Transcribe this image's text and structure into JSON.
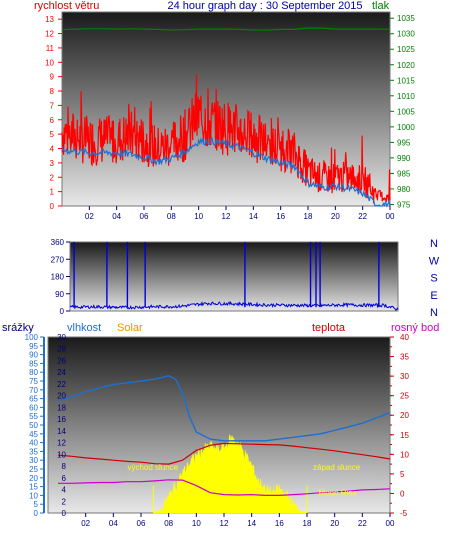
{
  "header": {
    "title": "24 hour graph day : 30 September 2015",
    "left_label": "rychlost větru",
    "right_label": "tlak"
  },
  "colors": {
    "wind": "#ff0000",
    "pressure": "#008000",
    "gust": "#1e6fd0",
    "direction": "#0000dd",
    "humidity": "#1e6fd0",
    "temperature": "#cc0000",
    "dewpoint": "#cc00cc",
    "solar": "#ffff00",
    "rain_label": "#000080",
    "solar_label": "#ff8c00",
    "axis_wind": "#ff0000",
    "axis_pressure": "#008000",
    "axis_blue": "#1e6fd0",
    "axis_temp": "#cc0000",
    "axis_dew": "#cc00cc",
    "axis_dir": "#000080"
  },
  "chart_data": [
    {
      "type": "line",
      "title": "24 hour graph day : 30 September 2015",
      "x_ticks": [
        "02",
        "04",
        "06",
        "08",
        "10",
        "12",
        "14",
        "16",
        "18",
        "20",
        "22",
        "00"
      ],
      "x_tick_hours": [
        2,
        4,
        6,
        8,
        10,
        12,
        14,
        16,
        18,
        20,
        22,
        24
      ],
      "y_left_label": "rychlost větru",
      "y_left_ticks": [
        0,
        1,
        2,
        3,
        4,
        5,
        6,
        7,
        8,
        9,
        10,
        11,
        12,
        13
      ],
      "ylim_left": [
        0,
        13.5
      ],
      "y_right_label": "tlak",
      "y_right_ticks": [
        975,
        980,
        985,
        990,
        995,
        1000,
        1005,
        1010,
        1015,
        1020,
        1025,
        1030,
        1035
      ],
      "ylim_right": [
        974.5,
        1037
      ],
      "series": [
        {
          "axis": "right",
          "color_key": "pressure",
          "points": [
            [
              0.0,
              1031.3
            ],
            [
              1.0,
              1031.5
            ],
            [
              2.0,
              1031.6
            ],
            [
              3.0,
              1031.6
            ],
            [
              4.0,
              1031.5
            ],
            [
              5.0,
              1031.6
            ],
            [
              6.0,
              1031.5
            ],
            [
              7.0,
              1031.4
            ],
            [
              8.0,
              1031.2
            ],
            [
              9.0,
              1031.3
            ],
            [
              10.0,
              1031.5
            ],
            [
              11.0,
              1031.5
            ],
            [
              12.0,
              1031.5
            ],
            [
              13.0,
              1031.4
            ],
            [
              14.0,
              1031.2
            ],
            [
              15.0,
              1031.2
            ],
            [
              16.0,
              1031.4
            ],
            [
              17.0,
              1031.4
            ],
            [
              18.0,
              1031.8
            ],
            [
              19.0,
              1031.8
            ],
            [
              20.0,
              1031.5
            ],
            [
              21.0,
              1031.5
            ],
            [
              22.0,
              1031.5
            ],
            [
              23.0,
              1031.5
            ],
            [
              24.0,
              1031.4
            ]
          ]
        },
        {
          "axis": "left",
          "color_key": "wind",
          "points": [
            [
              0.0,
              5.2
            ],
            [
              1.0,
              4.8
            ],
            [
              2.0,
              4.5
            ],
            [
              3.0,
              4.6
            ],
            [
              4.0,
              4.6
            ],
            [
              5.0,
              4.9
            ],
            [
              6.0,
              4.6
            ],
            [
              7.0,
              4.0
            ],
            [
              8.0,
              4.3
            ],
            [
              9.0,
              4.9
            ],
            [
              9.5,
              5.6
            ],
            [
              10.0,
              6.3
            ],
            [
              10.5,
              6.0
            ],
            [
              11.0,
              5.7
            ],
            [
              12.0,
              5.5
            ],
            [
              13.0,
              5.2
            ],
            [
              14.0,
              4.8
            ],
            [
              15.0,
              4.3
            ],
            [
              16.0,
              4.0
            ],
            [
              17.0,
              3.7
            ],
            [
              18.0,
              2.4
            ],
            [
              19.0,
              1.9
            ],
            [
              20.0,
              2.0
            ],
            [
              21.0,
              2.0
            ],
            [
              22.0,
              1.8
            ],
            [
              23.0,
              0.8
            ],
            [
              24.0,
              0.5
            ]
          ]
        },
        {
          "axis": "left",
          "color_key": "gust",
          "points": [
            [
              0.0,
              3.9
            ],
            [
              1.0,
              3.8
            ],
            [
              2.0,
              3.7
            ],
            [
              3.0,
              3.7
            ],
            [
              4.0,
              3.7
            ],
            [
              5.0,
              3.6
            ],
            [
              6.0,
              3.4
            ],
            [
              7.0,
              3.1
            ],
            [
              8.0,
              3.3
            ],
            [
              9.0,
              3.8
            ],
            [
              10.0,
              4.5
            ],
            [
              11.0,
              4.5
            ],
            [
              12.0,
              4.3
            ],
            [
              13.0,
              4.1
            ],
            [
              14.0,
              3.7
            ],
            [
              15.0,
              3.3
            ],
            [
              16.0,
              3.0
            ],
            [
              17.0,
              2.8
            ],
            [
              18.0,
              1.6
            ],
            [
              19.0,
              1.3
            ],
            [
              20.0,
              1.4
            ],
            [
              21.0,
              1.2
            ],
            [
              22.0,
              0.9
            ],
            [
              23.0,
              0.1
            ],
            [
              24.0,
              0.1
            ]
          ]
        }
      ]
    },
    {
      "type": "line",
      "y_ticks": [
        0,
        90,
        180,
        270,
        360
      ],
      "ylim": [
        0,
        360
      ],
      "right_labels": [
        "N",
        "W",
        "S",
        "E",
        "N"
      ],
      "x_hours_range": [
        0,
        24
      ],
      "series": [
        {
          "color_key": "direction",
          "baseline": [
            [
              0.0,
              20
            ],
            [
              2.0,
              22
            ],
            [
              4.0,
              18
            ],
            [
              6.0,
              22
            ],
            [
              8.0,
              24
            ],
            [
              10.0,
              40
            ],
            [
              12.0,
              38
            ],
            [
              14.0,
              32
            ],
            [
              16.0,
              30
            ],
            [
              18.0,
              28
            ],
            [
              20.0,
              32
            ],
            [
              22.0,
              30
            ],
            [
              23.0,
              30
            ],
            [
              24.0,
              8
            ]
          ],
          "spikes": [
            [
              0.3,
              360
            ],
            [
              2.7,
              360
            ],
            [
              4.2,
              360
            ],
            [
              5.5,
              360
            ],
            [
              12.8,
              360
            ],
            [
              17.6,
              360
            ],
            [
              18.0,
              360
            ],
            [
              18.3,
              360
            ],
            [
              22.6,
              360
            ]
          ]
        }
      ]
    },
    {
      "type": "line",
      "left_labels": [
        "srážky",
        "vlhkost",
        "Solar"
      ],
      "right_labels": [
        "teplota",
        "rosný bod"
      ],
      "x_ticks": [
        "02",
        "04",
        "06",
        "08",
        "10",
        "12",
        "14",
        "16",
        "18",
        "20",
        "22",
        "00"
      ],
      "x_tick_hours": [
        2,
        4,
        6,
        8,
        10,
        12,
        14,
        16,
        18,
        20,
        22,
        24
      ],
      "y_rain_ticks": [
        0,
        5,
        10,
        15,
        20,
        25,
        30,
        35,
        40,
        45,
        50,
        55,
        60,
        65,
        70,
        75,
        80,
        85,
        90,
        95,
        100
      ],
      "ylim_rain": [
        0,
        100
      ],
      "y_humidity_ticks": [
        0,
        2,
        4,
        6,
        8,
        10,
        12,
        14,
        16,
        18,
        20,
        22,
        24,
        26,
        28,
        30
      ],
      "ylim_humidity": [
        0,
        30
      ],
      "y_temp_ticks": [
        -5,
        0,
        5,
        10,
        15,
        20,
        25,
        30,
        35,
        40
      ],
      "ylim_temp": [
        -5,
        40
      ],
      "annotations": [
        {
          "text": "východ slunce",
          "hour": 6.9
        },
        {
          "text": "západ slunce",
          "hour": 18.0
        },
        {
          "text": "Moon Rise",
          "hour": 18.4
        }
      ],
      "series": [
        {
          "name": "vlhkost",
          "axis": "rain",
          "color_key": "humidity",
          "points": [
            [
              0.0,
              64
            ],
            [
              1.0,
              66
            ],
            [
              2.0,
              69
            ],
            [
              3.0,
              71
            ],
            [
              4.0,
              73
            ],
            [
              5.0,
              74
            ],
            [
              6.0,
              75
            ],
            [
              7.0,
              76
            ],
            [
              8.0,
              78
            ],
            [
              8.5,
              76
            ],
            [
              9.0,
              68
            ],
            [
              9.5,
              55
            ],
            [
              10.0,
              46
            ],
            [
              11.0,
              42
            ],
            [
              12.0,
              41
            ],
            [
              13.0,
              41
            ],
            [
              14.0,
              41
            ],
            [
              15.0,
              41
            ],
            [
              16.0,
              42
            ],
            [
              17.0,
              43
            ],
            [
              18.0,
              44
            ],
            [
              19.0,
              45
            ],
            [
              20.0,
              47
            ],
            [
              21.0,
              49
            ],
            [
              22.0,
              51
            ],
            [
              23.0,
              54
            ],
            [
              24.0,
              57
            ]
          ]
        },
        {
          "name": "teplota",
          "axis": "temp",
          "color_key": "temperature",
          "points": [
            [
              0.0,
              9.8
            ],
            [
              1.0,
              9.5
            ],
            [
              2.0,
              9.1
            ],
            [
              3.0,
              8.8
            ],
            [
              4.0,
              8.5
            ],
            [
              5.0,
              8.2
            ],
            [
              6.0,
              8.0
            ],
            [
              7.0,
              7.6
            ],
            [
              8.0,
              7.5
            ],
            [
              9.0,
              8.5
            ],
            [
              10.0,
              11.0
            ],
            [
              11.0,
              12.3
            ],
            [
              12.0,
              12.8
            ],
            [
              13.0,
              12.7
            ],
            [
              14.0,
              12.6
            ],
            [
              15.0,
              12.5
            ],
            [
              16.0,
              12.4
            ],
            [
              17.0,
              12.1
            ],
            [
              18.0,
              11.7
            ],
            [
              19.0,
              11.3
            ],
            [
              20.0,
              10.9
            ],
            [
              21.0,
              10.4
            ],
            [
              22.0,
              9.9
            ],
            [
              23.0,
              9.4
            ],
            [
              24.0,
              8.8
            ]
          ]
        },
        {
          "name": "rosný bod",
          "axis": "temp",
          "color_key": "dewpoint",
          "points": [
            [
              0.0,
              2.6
            ],
            [
              1.0,
              2.6
            ],
            [
              2.0,
              2.7
            ],
            [
              3.0,
              2.8
            ],
            [
              4.0,
              2.8
            ],
            [
              5.0,
              3.0
            ],
            [
              6.0,
              3.0
            ],
            [
              7.0,
              3.2
            ],
            [
              8.0,
              3.5
            ],
            [
              9.0,
              3.4
            ],
            [
              10.0,
              2.0
            ],
            [
              11.0,
              0.2
            ],
            [
              12.0,
              -0.3
            ],
            [
              13.0,
              -0.4
            ],
            [
              14.0,
              -0.3
            ],
            [
              15.0,
              -0.5
            ],
            [
              16.0,
              -0.5
            ],
            [
              17.0,
              -0.3
            ],
            [
              18.0,
              -0.1
            ],
            [
              19.0,
              0.2
            ],
            [
              20.0,
              0.4
            ],
            [
              21.0,
              0.6
            ],
            [
              22.0,
              0.9
            ],
            [
              23.0,
              1.0
            ],
            [
              24.0,
              1.2
            ]
          ]
        },
        {
          "name": "Solar",
          "axis": "temp",
          "type": "area",
          "color_key": "solar",
          "points": [
            [
              6.9,
              -5
            ],
            [
              7.5,
              -4
            ],
            [
              8.0,
              -1
            ],
            [
              8.5,
              2
            ],
            [
              9.0,
              5
            ],
            [
              9.5,
              7.5
            ],
            [
              10.0,
              9.5
            ],
            [
              10.5,
              11
            ],
            [
              11.0,
              12
            ],
            [
              11.5,
              11
            ],
            [
              12.0,
              11.5
            ],
            [
              12.5,
              14
            ],
            [
              13.0,
              13
            ],
            [
              13.5,
              10
            ],
            [
              14.0,
              7
            ],
            [
              14.5,
              3
            ],
            [
              15.0,
              1
            ],
            [
              15.5,
              0
            ],
            [
              16.0,
              1
            ],
            [
              16.5,
              -0.5
            ],
            [
              17.0,
              -3
            ],
            [
              17.5,
              -4.5
            ],
            [
              18.0,
              -5
            ]
          ]
        }
      ]
    }
  ]
}
